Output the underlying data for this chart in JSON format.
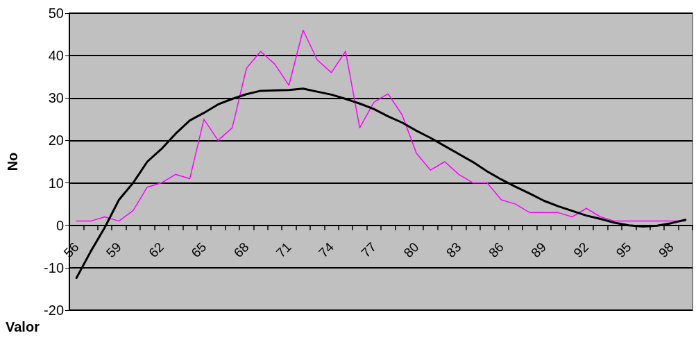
{
  "chart_data": {
    "type": "line",
    "xlabel": "Valor",
    "ylabel": "No",
    "categories": [
      "56",
      null,
      null,
      "59",
      null,
      null,
      "62",
      null,
      null,
      "65",
      null,
      null,
      "68",
      null,
      null,
      "71",
      null,
      null,
      "74",
      null,
      null,
      "77",
      null,
      null,
      "80",
      null,
      null,
      "83",
      null,
      null,
      "86",
      null,
      null,
      "89",
      null,
      null,
      "92",
      null,
      null,
      "95",
      null,
      null,
      "98",
      null
    ],
    "series": [
      {
        "color": "#ff00ff",
        "values": [
          1,
          1,
          2,
          1,
          3.5,
          9,
          10,
          12,
          11,
          25,
          20,
          23,
          37,
          41,
          38,
          33,
          46,
          39,
          36,
          41,
          23,
          29,
          31,
          26,
          17,
          13,
          15,
          12,
          10,
          10,
          6,
          5,
          3,
          3,
          3,
          2,
          4,
          2,
          1,
          1,
          1,
          1,
          1,
          1
        ]
      },
      {
        "type": "line",
        "color": "#000000",
        "values": [
          -12.4,
          -6.2,
          -0.5,
          6,
          10,
          15,
          18,
          21.6,
          24.7,
          26.5,
          28.5,
          29.8,
          30.9,
          31.7,
          31.8,
          31.9,
          32.2,
          31.5,
          30.8,
          29.8,
          28.7,
          27.4,
          25.7,
          24.2,
          22.3,
          20.6,
          18.7,
          16.8,
          14.9,
          12.7,
          10.8,
          9.1,
          7.5,
          5.8,
          4.5,
          3.4,
          2.3,
          1.5,
          0.6,
          0,
          -0.3,
          -0.1,
          0.5,
          1.3
        ]
      }
    ],
    "ylim": [
      -20,
      50
    ],
    "yticks": [
      -20,
      -10,
      0,
      10,
      20,
      30,
      40,
      50
    ],
    "grid": "y",
    "marker": "none",
    "line_style": "solid"
  }
}
